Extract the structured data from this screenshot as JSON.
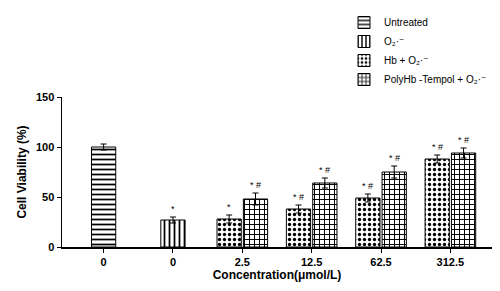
{
  "chart_data": {
    "type": "bar",
    "x_label": "Concentration(μmol/L)",
    "y_label": "Cell Viability (%)",
    "categories": [
      "0",
      "0",
      "2.5",
      "12.5",
      "62.5",
      "312.5"
    ],
    "series": [
      {
        "name": "Untreated",
        "color": "#000000",
        "values": [
          100,
          null,
          null,
          null,
          null,
          null
        ],
        "errors": [
          3,
          null,
          null,
          null,
          null,
          null
        ],
        "marks": [
          null,
          null,
          null,
          null,
          null,
          null
        ]
      },
      {
        "name": "O₂·⁻",
        "color": "#000000",
        "values": [
          null,
          27,
          null,
          null,
          null,
          null
        ],
        "errors": [
          null,
          3,
          null,
          null,
          null,
          null
        ],
        "marks": [
          null,
          "*",
          null,
          null,
          null,
          null
        ]
      },
      {
        "name": "Hb + O₂·⁻",
        "color": "#000000",
        "values": [
          null,
          null,
          28,
          38,
          49,
          88
        ],
        "errors": [
          null,
          null,
          4,
          4,
          4,
          4
        ],
        "marks": [
          null,
          null,
          "*",
          "* #",
          "* #",
          "* #"
        ]
      },
      {
        "name": "PolyHb -Tempol + O₂·⁻",
        "color": "#000000",
        "values": [
          null,
          null,
          48,
          64,
          75,
          94
        ],
        "errors": [
          null,
          null,
          6,
          5,
          6,
          5
        ],
        "marks": [
          null,
          null,
          "* #",
          "* #",
          "* #",
          "* #"
        ]
      }
    ],
    "ylim": [
      0,
      150
    ],
    "yticks": [
      0,
      50,
      100,
      150
    ],
    "grid": false,
    "legend": "top right"
  }
}
